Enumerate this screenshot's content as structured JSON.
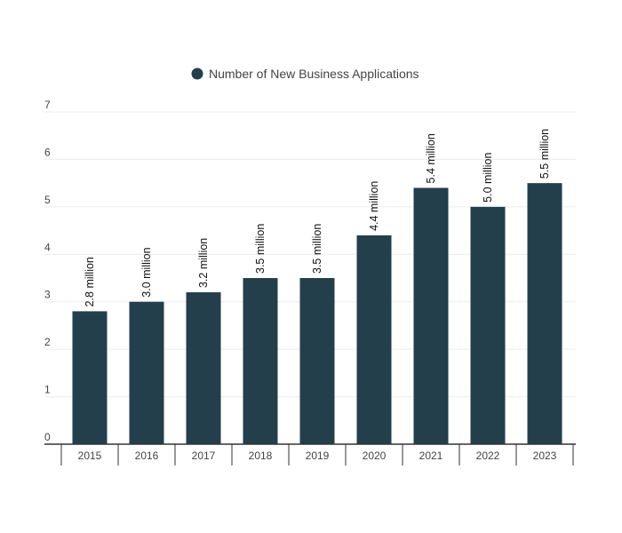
{
  "chart_data": {
    "type": "bar",
    "categories": [
      "2015",
      "2016",
      "2017",
      "2018",
      "2019",
      "2020",
      "2021",
      "2022",
      "2023"
    ],
    "series": [
      {
        "name": "Number of New Business Applications",
        "values": [
          2.8,
          3.0,
          3.2,
          3.5,
          3.5,
          4.4,
          5.4,
          5.0,
          5.5
        ],
        "data_labels": [
          "2.8 million",
          "3.0 million",
          "3.2 million",
          "3.5 million",
          "3.5 million",
          "4.4 million",
          "5.4 million",
          "5.0 million",
          "5.5 million"
        ],
        "color": "#233f4b"
      }
    ],
    "yticks": [
      "0",
      "1",
      "2",
      "3",
      "4",
      "5",
      "6",
      "7"
    ],
    "ylim": [
      0,
      7
    ],
    "title": "",
    "xlabel": "",
    "ylabel": "",
    "grid": true,
    "legend_position": "top-center"
  }
}
